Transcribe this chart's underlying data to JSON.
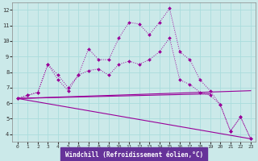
{
  "xlabel": "Windchill (Refroidissement éolien,°C)",
  "xlim": [
    -0.5,
    23.5
  ],
  "ylim": [
    3.5,
    12.5
  ],
  "yticks": [
    4,
    5,
    6,
    7,
    8,
    9,
    10,
    11,
    12
  ],
  "xticks": [
    0,
    1,
    2,
    3,
    4,
    5,
    6,
    7,
    8,
    9,
    10,
    11,
    12,
    13,
    14,
    15,
    16,
    17,
    18,
    19,
    20,
    21,
    22,
    23
  ],
  "bg_color": "#cbe9e9",
  "line_color": "#990099",
  "grid_color": "#aadddd",
  "line1_x": [
    0,
    1,
    2,
    3,
    4,
    5,
    6,
    7,
    8,
    9,
    10,
    11,
    12,
    13,
    14,
    15,
    16,
    17,
    18,
    19,
    20,
    21,
    22,
    23
  ],
  "line1_y": [
    6.3,
    6.5,
    6.7,
    8.5,
    7.8,
    7.0,
    7.8,
    9.5,
    8.8,
    8.8,
    10.2,
    11.2,
    11.1,
    10.4,
    11.2,
    12.1,
    9.3,
    8.8,
    7.5,
    6.8,
    5.9,
    4.2,
    5.1,
    3.7
  ],
  "line2_x": [
    0,
    1,
    2,
    3,
    4,
    5,
    6,
    7,
    8,
    9,
    10,
    11,
    12,
    13,
    14,
    15,
    16,
    17,
    18,
    19,
    20,
    21,
    22,
    23
  ],
  "line2_y": [
    6.3,
    6.5,
    6.7,
    8.5,
    7.5,
    6.8,
    7.8,
    8.1,
    8.2,
    7.8,
    8.5,
    8.7,
    8.5,
    8.8,
    9.3,
    10.2,
    7.5,
    7.2,
    6.7,
    6.5,
    5.9,
    4.2,
    5.1,
    3.7
  ],
  "line3_x": [
    0,
    23
  ],
  "line3_y": [
    6.3,
    6.8
  ],
  "line4_x": [
    0,
    19
  ],
  "line4_y": [
    6.3,
    6.6
  ],
  "line5_x": [
    0,
    23
  ],
  "line5_y": [
    6.3,
    3.7
  ],
  "xlabel_bg": "#663399",
  "xlabel_fg": "#ffffff"
}
